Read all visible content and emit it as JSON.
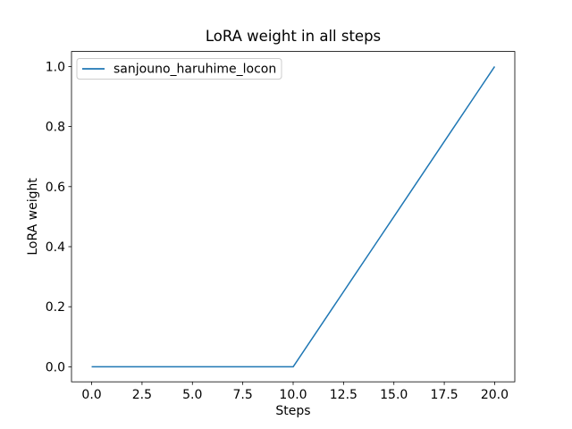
{
  "window": {
    "background": "#ffffff"
  },
  "chart_data": {
    "type": "line",
    "title": "LoRA weight in all steps",
    "xlabel": "Steps",
    "ylabel": "LoRA weight",
    "xlim": [
      -1.0,
      21.0
    ],
    "ylim": [
      -0.05,
      1.05
    ],
    "x_ticks": [
      0.0,
      2.5,
      5.0,
      7.5,
      10.0,
      12.5,
      15.0,
      17.5,
      20.0
    ],
    "x_tick_labels": [
      "0.0",
      "2.5",
      "5.0",
      "7.5",
      "10.0",
      "12.5",
      "15.0",
      "17.5",
      "20.0"
    ],
    "y_ticks": [
      0.0,
      0.2,
      0.4,
      0.6,
      0.8,
      1.0
    ],
    "y_tick_labels": [
      "0.0",
      "0.2",
      "0.4",
      "0.6",
      "0.8",
      "1.0"
    ],
    "grid": false,
    "legend": {
      "position": "upper left",
      "entries": [
        {
          "label": "sanjouno_haruhime_locon",
          "color": "#1f77b4"
        }
      ]
    },
    "series": [
      {
        "name": "sanjouno_haruhime_locon",
        "color": "#1f77b4",
        "line_width": 1.5,
        "x": [
          0,
          1,
          2,
          3,
          4,
          5,
          6,
          7,
          8,
          9,
          10,
          11,
          12,
          13,
          14,
          15,
          16,
          17,
          18,
          19,
          20
        ],
        "y": [
          0.0,
          0.0,
          0.0,
          0.0,
          0.0,
          0.0,
          0.0,
          0.0,
          0.0,
          0.0,
          0.0,
          0.1,
          0.2,
          0.3,
          0.4,
          0.5,
          0.6,
          0.7,
          0.8,
          0.9,
          1.0
        ]
      }
    ]
  },
  "colors": {
    "line": "#1f77b4",
    "axis": "#000000",
    "text": "#000000",
    "background": "#ffffff",
    "legend_border": "#cccccc",
    "legend_background": "#ffffff"
  }
}
